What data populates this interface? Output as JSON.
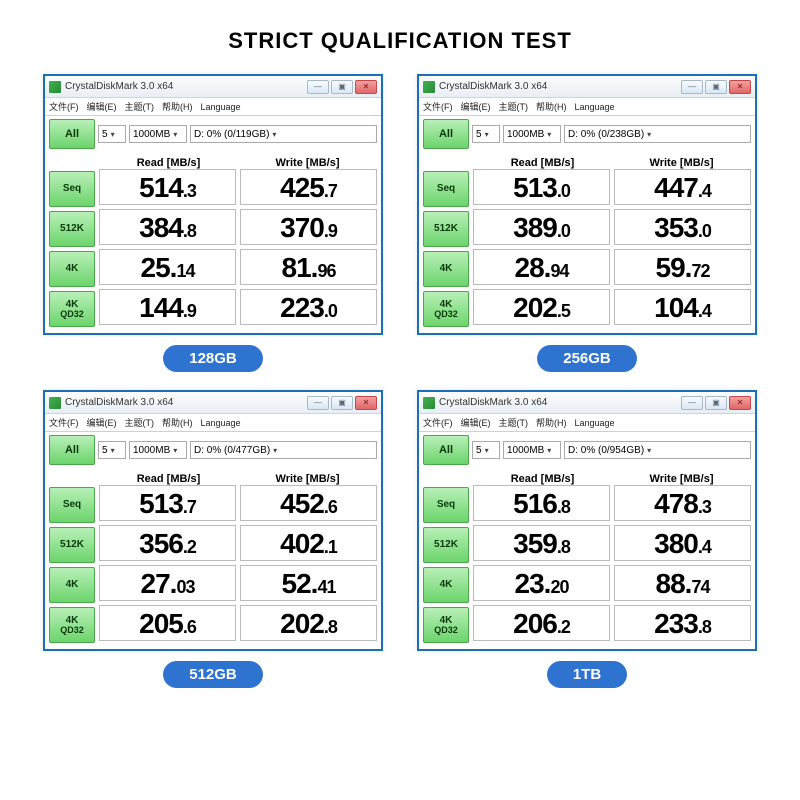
{
  "page": {
    "title": "STRICT QUALIFICATION TEST"
  },
  "colors": {
    "accent_blue": "#2f73d0",
    "border_blue": "#1b6fb8",
    "btn_green_top": "#b8f0b8",
    "btn_green_bot": "#6cd46c",
    "background": "#ffffff"
  },
  "app": {
    "window_title": "CrystalDiskMark 3.0 x64",
    "menu_items": [
      "文件(F)",
      "编辑(E)",
      "主题(T)",
      "帮助(H)",
      "Language"
    ],
    "all_button_label": "All",
    "runs_dropdown": "5",
    "size_dropdown": "1000MB",
    "read_header": "Read [MB/s]",
    "write_header": "Write [MB/s]",
    "row_labels": [
      {
        "l1": "Seq",
        "l2": ""
      },
      {
        "l1": "512K",
        "l2": ""
      },
      {
        "l1": "4K",
        "l2": ""
      },
      {
        "l1": "4K",
        "l2": "QD32"
      }
    ],
    "win_buttons": {
      "min": "—",
      "max": "▣",
      "close": "✕"
    }
  },
  "panels": [
    {
      "badge": "128GB",
      "drive": "D: 0% (0/119GB)",
      "rows": [
        {
          "read_big": "514",
          "read_small": ".3",
          "write_big": "425",
          "write_small": ".7"
        },
        {
          "read_big": "384",
          "read_small": ".8",
          "write_big": "370",
          "write_small": ".9"
        },
        {
          "read_big": "25.",
          "read_small": "14",
          "write_big": "81.",
          "write_small": "96"
        },
        {
          "read_big": "144",
          "read_small": ".9",
          "write_big": "223",
          "write_small": ".0"
        }
      ]
    },
    {
      "badge": "256GB",
      "drive": "D: 0% (0/238GB)",
      "rows": [
        {
          "read_big": "513",
          "read_small": ".0",
          "write_big": "447",
          "write_small": ".4"
        },
        {
          "read_big": "389",
          "read_small": ".0",
          "write_big": "353",
          "write_small": ".0"
        },
        {
          "read_big": "28.",
          "read_small": "94",
          "write_big": "59.",
          "write_small": "72"
        },
        {
          "read_big": "202",
          "read_small": ".5",
          "write_big": "104",
          "write_small": ".4"
        }
      ]
    },
    {
      "badge": "512GB",
      "drive": "D: 0% (0/477GB)",
      "rows": [
        {
          "read_big": "513",
          "read_small": ".7",
          "write_big": "452",
          "write_small": ".6"
        },
        {
          "read_big": "356",
          "read_small": ".2",
          "write_big": "402",
          "write_small": ".1"
        },
        {
          "read_big": "27.",
          "read_small": "03",
          "write_big": "52.",
          "write_small": "41"
        },
        {
          "read_big": "205",
          "read_small": ".6",
          "write_big": "202",
          "write_small": ".8"
        }
      ]
    },
    {
      "badge": "1TB",
      "drive": "D: 0% (0/954GB)",
      "rows": [
        {
          "read_big": "516",
          "read_small": ".8",
          "write_big": "478",
          "write_small": ".3"
        },
        {
          "read_big": "359",
          "read_small": ".8",
          "write_big": "380",
          "write_small": ".4"
        },
        {
          "read_big": "23.",
          "read_small": "20",
          "write_big": "88.",
          "write_small": "74"
        },
        {
          "read_big": "206",
          "read_small": ".2",
          "write_big": "233",
          "write_small": ".8"
        }
      ]
    }
  ]
}
